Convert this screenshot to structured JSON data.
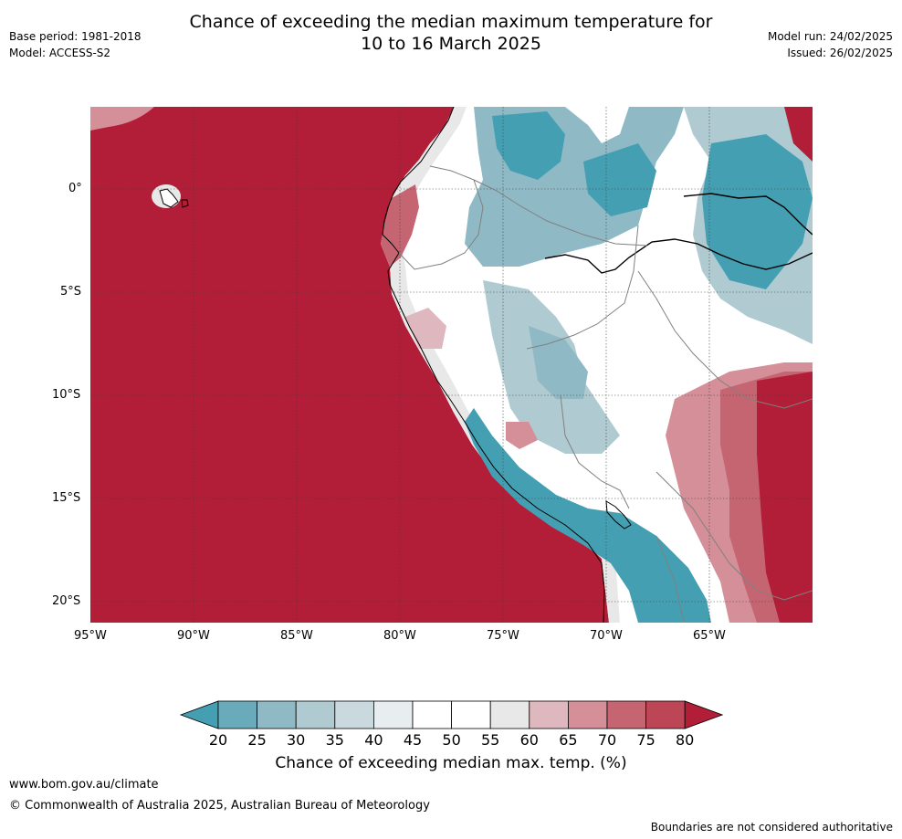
{
  "title_line1": "Chance of exceeding the median maximum temperature for",
  "title_line2": "10 to 16 March 2025",
  "meta_left": [
    "Base period: 1981-2018",
    "Model: ACCESS-S2"
  ],
  "meta_right": [
    "Model run: 24/02/2025",
    "Issued: 26/02/2025"
  ],
  "map": {
    "lon_ticks": [
      "95°W",
      "90°W",
      "85°W",
      "80°W",
      "75°W",
      "70°W",
      "65°W"
    ],
    "lat_ticks": [
      "0°",
      "5°S",
      "10°S",
      "15°S",
      "20°S"
    ],
    "lon_range": [
      -95,
      -60
    ],
    "lat_range": [
      -21,
      4
    ],
    "region": "Western South America and eastern Pacific Ocean"
  },
  "colorbar": {
    "label": "Chance of exceeding median max. temp. (%)",
    "ticks": [
      "20",
      "25",
      "30",
      "35",
      "40",
      "45",
      "50",
      "55",
      "60",
      "65",
      "70",
      "75",
      "80"
    ],
    "colors": [
      "#449fb2",
      "#6aabbb",
      "#8fbac5",
      "#afcbd1",
      "#c9d9dd",
      "#e8eef0",
      "#ffffff",
      "#ffffff",
      "#e8e8e8",
      "#dfb8bf",
      "#d58f99",
      "#c66572",
      "#bd4656",
      "#b21d37"
    ],
    "extend": "both"
  },
  "footer": {
    "website": "www.bom.gov.au/climate",
    "copyright": "© Commonwealth of Australia 2025, Australian Bureau of Meteorology",
    "disclaimer": "Boundaries are not considered authoritative"
  }
}
